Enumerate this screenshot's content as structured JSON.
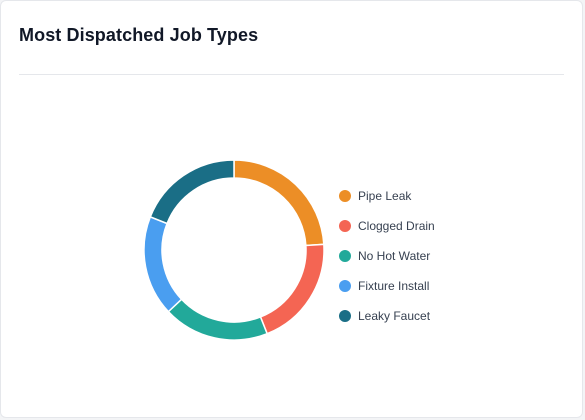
{
  "card": {
    "title": "Most Dispatched Job Types"
  },
  "chart_data": {
    "type": "pie",
    "variant": "donut",
    "title": "Most Dispatched Job Types",
    "categories": [
      "Pipe Leak",
      "Clogged Drain",
      "No Hot Water",
      "Fixture Install",
      "Leaky Faucet"
    ],
    "values": [
      24,
      20,
      19,
      18,
      19
    ],
    "colors": [
      "#ec8e26",
      "#f46553",
      "#22a99a",
      "#4a9ef0",
      "#1a6e86"
    ],
    "legend_position": "right"
  }
}
